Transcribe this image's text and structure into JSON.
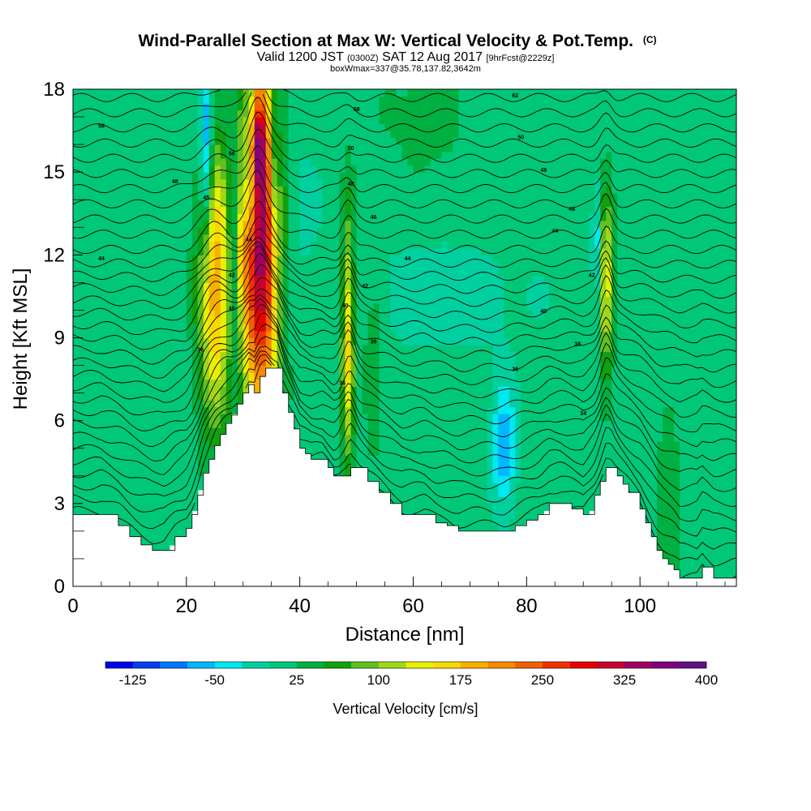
{
  "chart_data": {
    "type": "heatmap",
    "title": "Wind-Parallel Section at Max W: Vertical Velocity & Pot.Temp.",
    "title_mark": "(C)",
    "subtitle": {
      "valid_prefix": "Valid 1200 JST",
      "utc": "(0300Z)",
      "date": "SAT 12 Aug 2017",
      "forecast": "[9hrFcst@2229z]"
    },
    "subtitle2": "boxWmax=337@35.78,137.82,3642m",
    "xlabel": "Distance [nm]",
    "ylabel": "Height [Kft MSL]",
    "xlim": [
      0,
      117
    ],
    "ylim": [
      0,
      18
    ],
    "x_ticks": [
      "0",
      "20",
      "40",
      "60",
      "80",
      "100"
    ],
    "y_ticks": [
      "0",
      "3",
      "6",
      "9",
      "12",
      "15",
      "18"
    ],
    "colorbar": {
      "label": "Vertical Velocity [cm/s]",
      "tick_labels": [
        "-125",
        "-50",
        "25",
        "100",
        "175",
        "250",
        "325",
        "400"
      ],
      "levels": [
        -150,
        -125,
        -100,
        -75,
        -50,
        -25,
        0,
        25,
        50,
        75,
        100,
        125,
        150,
        175,
        200,
        225,
        250,
        275,
        300,
        325,
        350,
        375,
        400,
        425
      ],
      "colors": [
        "#0000ee",
        "#0040f0",
        "#0077ff",
        "#00b8ff",
        "#00e8f0",
        "#00d0a0",
        "#00c878",
        "#00b040",
        "#10a010",
        "#60c020",
        "#a0d818",
        "#e8f000",
        "#f8d800",
        "#f8b000",
        "#f88800",
        "#f06000",
        "#f03000",
        "#e80000",
        "#c80030",
        "#a00060",
        "#800080",
        "#601088"
      ]
    },
    "terrain_kft": [
      [
        0,
        2.6
      ],
      [
        5,
        2.6
      ],
      [
        8,
        2.2
      ],
      [
        10,
        1.8
      ],
      [
        12,
        1.5
      ],
      [
        14,
        1.3
      ],
      [
        16,
        1.3
      ],
      [
        18,
        1.8
      ],
      [
        20,
        2.1
      ],
      [
        21,
        2.6
      ],
      [
        22,
        3.3
      ],
      [
        23,
        4.1
      ],
      [
        24,
        4.6
      ],
      [
        25,
        5.1
      ],
      [
        26,
        5.5
      ],
      [
        27,
        5.9
      ],
      [
        28,
        6.2
      ],
      [
        29,
        6.6
      ],
      [
        30,
        7.0
      ],
      [
        31,
        7.3
      ],
      [
        32,
        7.0
      ],
      [
        33,
        7.6
      ],
      [
        34,
        7.9
      ],
      [
        36,
        7.9
      ],
      [
        37,
        7.0
      ],
      [
        38,
        6.3
      ],
      [
        39,
        5.7
      ],
      [
        40,
        5.0
      ],
      [
        41,
        4.8
      ],
      [
        42,
        4.6
      ],
      [
        44,
        4.6
      ],
      [
        45,
        4.3
      ],
      [
        46,
        4.0
      ],
      [
        48,
        4.0
      ],
      [
        49,
        4.3
      ],
      [
        50,
        4.3
      ],
      [
        52,
        3.8
      ],
      [
        54,
        3.4
      ],
      [
        56,
        3.0
      ],
      [
        58,
        2.6
      ],
      [
        62,
        2.6
      ],
      [
        64,
        2.3
      ],
      [
        66,
        2.2
      ],
      [
        68,
        2.0
      ],
      [
        72,
        2.0
      ],
      [
        74,
        2.0
      ],
      [
        76,
        2.0
      ],
      [
        78,
        2.2
      ],
      [
        80,
        2.4
      ],
      [
        82,
        2.6
      ],
      [
        84,
        3.0
      ],
      [
        86,
        3.0
      ],
      [
        88,
        2.8
      ],
      [
        90,
        2.6
      ],
      [
        92,
        3.3
      ],
      [
        93,
        3.8
      ],
      [
        94,
        4.3
      ],
      [
        95,
        4.3
      ],
      [
        96,
        4.0
      ],
      [
        97,
        3.7
      ],
      [
        98,
        3.4
      ],
      [
        100,
        2.8
      ],
      [
        101,
        2.3
      ],
      [
        102,
        1.8
      ],
      [
        103,
        1.3
      ],
      [
        104,
        1.0
      ],
      [
        105,
        0.8
      ],
      [
        106,
        0.6
      ],
      [
        107,
        0.3
      ],
      [
        108,
        0.3
      ],
      [
        110,
        0.3
      ],
      [
        111,
        0.7
      ],
      [
        113,
        0.3
      ],
      [
        115,
        0.3
      ],
      [
        117,
        0.3
      ]
    ],
    "w_features": [
      {
        "x": 33,
        "y": 12.5,
        "sx": 2.3,
        "sy": 5.0,
        "amp": 330
      },
      {
        "x": 32.5,
        "y": 16.0,
        "sx": 1.1,
        "sy": 1.0,
        "amp": 120
      },
      {
        "x": 25,
        "y": 11.0,
        "sx": 2.0,
        "sy": 3.5,
        "amp": 185
      },
      {
        "x": 29.5,
        "y": 12.0,
        "sx": 1.0,
        "sy": 1.5,
        "amp": 75
      },
      {
        "x": 48.5,
        "y": 9.0,
        "sx": 0.8,
        "sy": 3.2,
        "amp": 150
      },
      {
        "x": 94,
        "y": 11.0,
        "sx": 0.8,
        "sy": 2.2,
        "amp": 150
      },
      {
        "x": 53,
        "y": 8.0,
        "sx": 1.2,
        "sy": 2.0,
        "amp": 45
      },
      {
        "x": 28.5,
        "y": 12.0,
        "sx": 0.8,
        "sy": 2.5,
        "amp": -95
      },
      {
        "x": 23.5,
        "y": 15.5,
        "sx": 0.8,
        "sy": 2.5,
        "amp": -115
      },
      {
        "x": 31.2,
        "y": 15.5,
        "sx": 0.7,
        "sy": 2.2,
        "amp": -115
      },
      {
        "x": 35.5,
        "y": 15.5,
        "sx": 0.7,
        "sy": 2.0,
        "amp": -90
      },
      {
        "x": 76,
        "y": 5.0,
        "sx": 1.5,
        "sy": 1.6,
        "amp": -85
      },
      {
        "x": 92.5,
        "y": 12.5,
        "sx": 0.6,
        "sy": 1.5,
        "amp": -60
      },
      {
        "x": 65,
        "y": 10.5,
        "sx": 12.0,
        "sy": 1.5,
        "amp": -25
      },
      {
        "x": 62,
        "y": 17.0,
        "sx": 5.0,
        "sy": 1.5,
        "amp": 25
      },
      {
        "x": 105,
        "y": 3.0,
        "sx": 1.5,
        "sy": 2.0,
        "amp": 40
      },
      {
        "x": 40,
        "y": 14.0,
        "sx": 3.0,
        "sy": 3.0,
        "amp": -15
      }
    ],
    "isotherm_labels": [
      {
        "x": 5,
        "y": 16.6,
        "text": "58"
      },
      {
        "x": 18,
        "y": 14.6,
        "text": "48"
      },
      {
        "x": 5,
        "y": 11.8,
        "text": "44"
      },
      {
        "x": 28,
        "y": 15.6,
        "text": "50"
      },
      {
        "x": 23.5,
        "y": 14.0,
        "sx": 0,
        "text": "45"
      },
      {
        "x": 31,
        "y": 12.5,
        "text": "44"
      },
      {
        "x": 28,
        "y": 11.2,
        "text": "42"
      },
      {
        "x": 28,
        "y": 10.0,
        "text": "40"
      },
      {
        "x": 22.5,
        "y": 8.5,
        "text": "36"
      },
      {
        "x": 50,
        "y": 17.2,
        "text": "58"
      },
      {
        "x": 49,
        "y": 15.8,
        "text": "50"
      },
      {
        "x": 49,
        "y": 14.5,
        "text": "48"
      },
      {
        "x": 53,
        "y": 13.3,
        "text": "46"
      },
      {
        "x": 59,
        "y": 11.8,
        "text": "44"
      },
      {
        "x": 51.5,
        "y": 10.8,
        "text": "42"
      },
      {
        "x": 48,
        "y": 10.1,
        "text": "40"
      },
      {
        "x": 53,
        "y": 8.8,
        "text": "38"
      },
      {
        "x": 47.5,
        "y": 7.3,
        "text": "36"
      },
      {
        "x": 78,
        "y": 17.7,
        "text": "62"
      },
      {
        "x": 79,
        "y": 16.2,
        "text": "50"
      },
      {
        "x": 83,
        "y": 15.0,
        "text": "48"
      },
      {
        "x": 88,
        "y": 13.6,
        "text": "46"
      },
      {
        "x": 85,
        "y": 12.8,
        "text": "44"
      },
      {
        "x": 91.5,
        "y": 11.2,
        "text": "42"
      },
      {
        "x": 83,
        "y": 9.9,
        "text": "40"
      },
      {
        "x": 89,
        "y": 8.7,
        "text": "38"
      },
      {
        "x": 78,
        "y": 7.8,
        "text": "36"
      },
      {
        "x": 90,
        "y": 6.2,
        "text": "34"
      }
    ]
  }
}
